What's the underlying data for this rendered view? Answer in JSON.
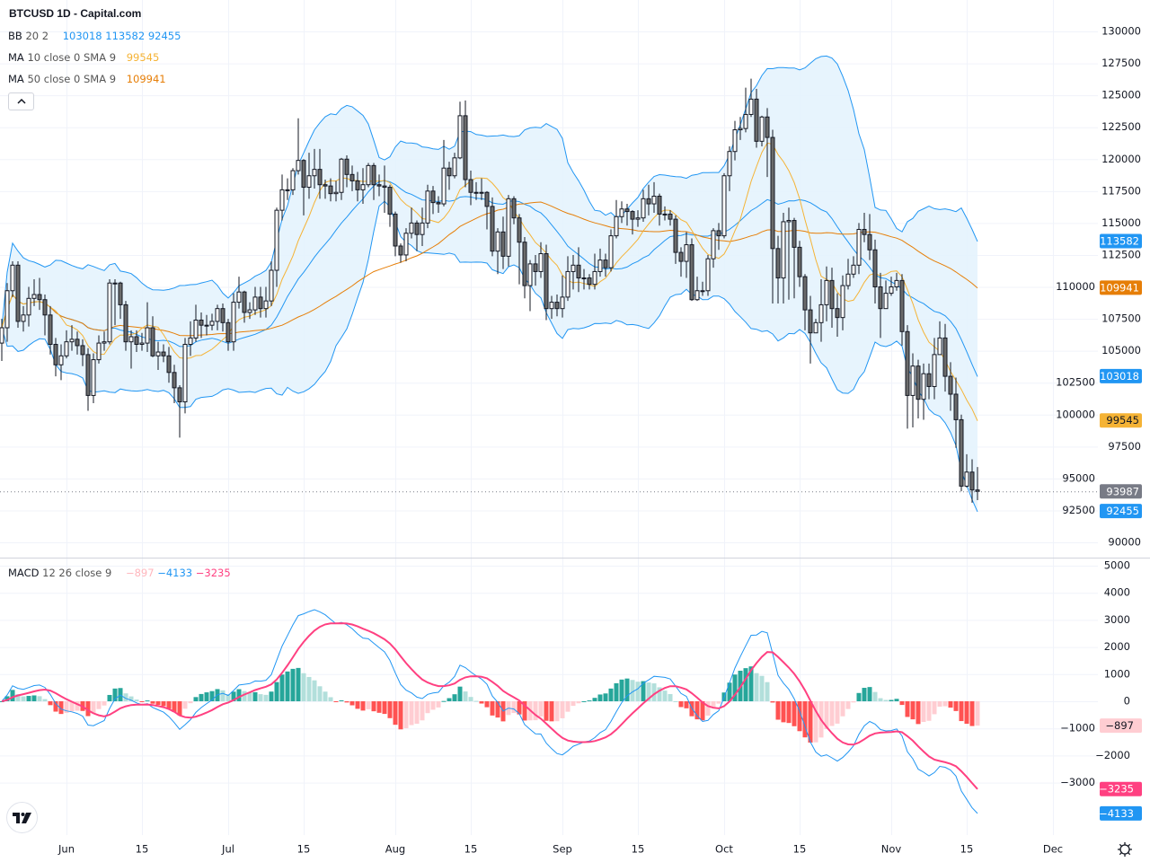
{
  "header": {
    "title": "BTCUSD 1D - Capital.com"
  },
  "legend": {
    "bb": {
      "name": "BB",
      "params": "20 2",
      "values": [
        "103018",
        "113582",
        "92455"
      ],
      "color": "#2196f3"
    },
    "ma10": {
      "name": "MA",
      "params": "10 close 0 SMA 9",
      "value": "99545",
      "color": "#f5b335"
    },
    "ma50": {
      "name": "MA",
      "params": "50 close 0 SMA 9",
      "value": "109941",
      "color": "#e67e07"
    },
    "macd": {
      "name": "MACD",
      "params": "12 26 close 9",
      "values": [
        {
          "text": "−897",
          "color": "#ffb6bd"
        },
        {
          "text": "−4133",
          "color": "#2196f3"
        },
        {
          "text": "−3235",
          "color": "#ff4081"
        }
      ]
    }
  },
  "price_axis": {
    "labels": [
      "130000",
      "127500",
      "125000",
      "122500",
      "120000",
      "117500",
      "115000",
      "112500",
      "110000",
      "107500",
      "105000",
      "102500",
      "100000",
      "97500",
      "95000",
      "92500",
      "90000"
    ],
    "tags": [
      {
        "value": 113582,
        "text": "113582",
        "bg": "#2196f3",
        "fg": "#ffffff"
      },
      {
        "value": 109941,
        "text": "109941",
        "bg": "#e67e07",
        "fg": "#ffffff"
      },
      {
        "value": 103018,
        "text": "103018",
        "bg": "#2196f3",
        "fg": "#ffffff"
      },
      {
        "value": 99545,
        "text": "99545",
        "bg": "#f5b335",
        "fg": "#131722"
      },
      {
        "value": 93987,
        "text": "93987",
        "bg": "#787b86",
        "fg": "#ffffff"
      },
      {
        "value": 92455,
        "text": "92455",
        "bg": "#2196f3",
        "fg": "#ffffff"
      }
    ]
  },
  "macd_axis": {
    "labels": [
      {
        "value": 5000,
        "text": "5000"
      },
      {
        "value": 4000,
        "text": "4000"
      },
      {
        "value": 3000,
        "text": "3000"
      },
      {
        "value": 2000,
        "text": "2000"
      },
      {
        "value": 1000,
        "text": "1000"
      },
      {
        "value": 0,
        "text": "0"
      },
      {
        "value": -1000,
        "text": "−1000"
      },
      {
        "value": -2000,
        "text": "−2000"
      },
      {
        "value": -3000,
        "text": "−3000"
      }
    ],
    "tags": [
      {
        "value": -897,
        "text": "−897",
        "bg": "#ffcdd2",
        "fg": "#131722"
      },
      {
        "value": -3235,
        "text": "−3235",
        "bg": "#ff4081",
        "fg": "#ffffff"
      },
      {
        "value": -4133,
        "text": "−4133",
        "bg": "#2196f3",
        "fg": "#ffffff"
      }
    ]
  },
  "time_axis": {
    "labels": [
      {
        "text": "Jun",
        "date": "2025-06-01"
      },
      {
        "text": "15",
        "date": "2025-06-15"
      },
      {
        "text": "Jul",
        "date": "2025-07-01"
      },
      {
        "text": "15",
        "date": "2025-07-15"
      },
      {
        "text": "Aug",
        "date": "2025-08-01"
      },
      {
        "text": "15",
        "date": "2025-08-15"
      },
      {
        "text": "Sep",
        "date": "2025-09-01"
      },
      {
        "text": "15",
        "date": "2025-09-15"
      },
      {
        "text": "Oct",
        "date": "2025-10-01"
      },
      {
        "text": "15",
        "date": "2025-10-15"
      },
      {
        "text": "Nov",
        "date": "2025-11-01"
      },
      {
        "text": "15",
        "date": "2025-11-15"
      },
      {
        "text": "Dec",
        "date": "2025-12-01"
      }
    ]
  },
  "icons": {
    "logo": "tradingview-logo",
    "settings": "gear-icon",
    "collapse": "chevron-up-icon"
  },
  "chart_data": {
    "type": "candlestick",
    "symbol": "BTCUSD",
    "interval": "1D",
    "start_date": "2025-05-20",
    "first_open": 105600,
    "ylim": [
      90000,
      130000
    ],
    "macd_ylim": [
      -5000,
      5000
    ],
    "grid": true,
    "colors": {
      "up": "#ffffff",
      "down": "#6b6b6b",
      "bb": "#2196f3",
      "bb_fill": "#e3f2fd",
      "ma10": "#f5b335",
      "ma50": "#e67e07",
      "macd": "#2196f3",
      "signal": "#ff4081",
      "hist_up": "#26a69a",
      "hist_up_weak": "#b2dfdb",
      "hist_down": "#ff5252",
      "hist_down_weak": "#ffcdd2"
    },
    "close": [
      106800,
      109700,
      111700,
      107300,
      107800,
      109100,
      109400,
      109000,
      107800,
      105500,
      103900,
      104600,
      105700,
      105900,
      105400,
      104700,
      101500,
      104300,
      105600,
      105700,
      110300,
      110300,
      108600,
      105700,
      106100,
      105500,
      105600,
      106800,
      104600,
      104900,
      104600,
      103300,
      102100,
      101000,
      105500,
      106000,
      107400,
      107000,
      107000,
      107300,
      108300,
      107200,
      105700,
      108800,
      109600,
      108000,
      108200,
      109200,
      108300,
      108900,
      111300,
      116000,
      117600,
      117600,
      119100,
      119900,
      117800,
      118700,
      119200,
      118000,
      117900,
      117300,
      117400,
      120000,
      118800,
      118300,
      117600,
      118000,
      119500,
      118000,
      117900,
      117800,
      115700,
      113200,
      112500,
      114200,
      115000,
      114100,
      115000,
      117500,
      116600,
      116500,
      119300,
      118700,
      120100,
      123400,
      118400,
      117400,
      117400,
      117400,
      116300,
      112800,
      114300,
      112400,
      116900,
      115400,
      113500,
      110100,
      111800,
      111200,
      112600,
      108300,
      108800,
      108300,
      109200,
      111200,
      111700,
      110700,
      110700,
      110200,
      111200,
      112100,
      111500,
      114000,
      115500,
      116100,
      115900,
      115300,
      115400,
      116900,
      116500,
      117100,
      115700,
      115700,
      115300,
      112700,
      112000,
      113300,
      109000,
      109700,
      109700,
      112200,
      114400,
      114000,
      118700,
      120600,
      122300,
      122400,
      123500,
      124700,
      121400,
      123300,
      121700,
      113000,
      110700,
      115100,
      115200,
      113100,
      110800,
      108200,
      106400,
      107200,
      108600,
      110500,
      108300,
      107600,
      110100,
      111000,
      111700,
      114500,
      114100,
      112900,
      110000,
      108300,
      109500,
      110000,
      110500,
      106500,
      101500,
      103800,
      101200,
      103200,
      102200,
      104700,
      106000,
      103000,
      101600,
      99600,
      94400,
      95500,
      94100,
      93987
    ],
    "high": [
      107500,
      110300,
      112000,
      112000,
      108500,
      110000,
      110600,
      110700,
      109400,
      108500,
      106000,
      105500,
      106600,
      107000,
      106500,
      105900,
      105200,
      104800,
      106200,
      106500,
      110600,
      110600,
      110400,
      108900,
      106600,
      106600,
      106400,
      108800,
      107700,
      105700,
      105500,
      105300,
      103900,
      102300,
      106000,
      107300,
      108600,
      108000,
      107800,
      107900,
      108600,
      108700,
      107500,
      109500,
      110800,
      109700,
      108800,
      110000,
      110000,
      110000,
      112000,
      116200,
      118800,
      118500,
      119300,
      123200,
      120000,
      120500,
      120800,
      120800,
      118400,
      118500,
      118300,
      120100,
      120300,
      119500,
      119000,
      119300,
      119700,
      119700,
      118800,
      119500,
      118000,
      115900,
      113400,
      114600,
      116200,
      115200,
      116200,
      118000,
      117900,
      117100,
      121500,
      119800,
      120500,
      124500,
      124600,
      119100,
      118200,
      118500,
      117500,
      117000,
      114600,
      115500,
      117200,
      117100,
      115700,
      113900,
      112100,
      112500,
      113500,
      113300,
      109300,
      109400,
      110900,
      112400,
      112500,
      113100,
      111400,
      111000,
      112600,
      113000,
      112600,
      114500,
      116800,
      116700,
      116500,
      116000,
      116000,
      117600,
      118000,
      118200,
      117300,
      116300,
      116000,
      115600,
      113100,
      114300,
      113800,
      110800,
      110400,
      112500,
      114600,
      115000,
      118900,
      121000,
      123000,
      123300,
      125600,
      126300,
      125500,
      123400,
      124000,
      122300,
      114000,
      115800,
      116200,
      115400,
      113600,
      111000,
      109300,
      107500,
      110600,
      111600,
      111500,
      109500,
      110900,
      112200,
      112400,
      115000,
      115800,
      115700,
      113700,
      111100,
      110500,
      110800,
      111100,
      111000,
      107000,
      104800,
      104300,
      104000,
      104000,
      106000,
      107300,
      107100,
      104100,
      102900,
      100000,
      96900,
      96500,
      95900
    ],
    "low": [
      104200,
      105700,
      109200,
      106800,
      106500,
      106900,
      108500,
      108200,
      106200,
      104700,
      103000,
      102700,
      104400,
      105000,
      104700,
      103800,
      100300,
      100900,
      104000,
      105000,
      105500,
      107000,
      107500,
      105000,
      103600,
      104900,
      105000,
      104900,
      104500,
      103500,
      104100,
      102500,
      100900,
      98200,
      100100,
      104600,
      105700,
      106000,
      106200,
      106600,
      106600,
      106500,
      105000,
      105000,
      108300,
      107200,
      107500,
      107800,
      107600,
      107600,
      108500,
      110000,
      115200,
      116800,
      117200,
      118800,
      115600,
      116900,
      117700,
      116900,
      116900,
      116700,
      116700,
      116800,
      117800,
      117500,
      116700,
      116500,
      117800,
      116800,
      117100,
      115800,
      114700,
      112400,
      111900,
      112000,
      113800,
      112800,
      113200,
      114600,
      115700,
      115800,
      116300,
      117600,
      118500,
      120000,
      117800,
      116400,
      116800,
      116800,
      114500,
      112400,
      111000,
      111400,
      111600,
      114900,
      110200,
      109100,
      108100,
      110100,
      110700,
      107400,
      107500,
      107700,
      107600,
      108900,
      109800,
      109600,
      109800,
      109800,
      109800,
      110800,
      110800,
      111200,
      113800,
      115000,
      114800,
      114100,
      114700,
      115100,
      115600,
      115800,
      114800,
      115200,
      114800,
      111800,
      110800,
      110700,
      108900,
      108900,
      109300,
      109300,
      111500,
      112900,
      113800,
      117500,
      119900,
      121500,
      122100,
      123300,
      120900,
      121000,
      118600,
      108700,
      108700,
      108700,
      109000,
      109100,
      110000,
      106600,
      104000,
      106400,
      105700,
      107300,
      106800,
      106100,
      106600,
      109800,
      110700,
      111000,
      113500,
      112100,
      108700,
      106000,
      108300,
      109300,
      109700,
      105400,
      98900,
      99000,
      99700,
      99600,
      101200,
      101200,
      105100,
      101800,
      100300,
      97400,
      94000,
      94300,
      93100,
      93300
    ]
  }
}
